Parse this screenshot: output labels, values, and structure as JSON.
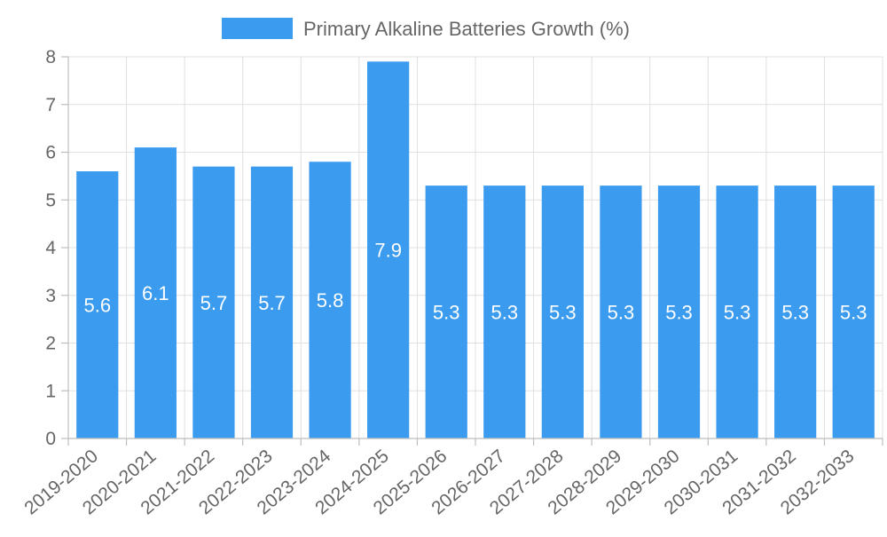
{
  "chart_data": {
    "type": "bar",
    "categories": [
      "2019-2020",
      "2020-2021",
      "2021-2022",
      "2022-2023",
      "2023-2024",
      "2024-2025",
      "2025-2026",
      "2026-2027",
      "2027-2028",
      "2028-2029",
      "2029-2030",
      "2030-2031",
      "2031-2032",
      "2032-2033"
    ],
    "series": [
      {
        "name": "Primary Alkaline Batteries Growth (%)",
        "values": [
          5.6,
          6.1,
          5.7,
          5.7,
          5.8,
          7.9,
          5.3,
          5.3,
          5.3,
          5.3,
          5.3,
          5.3,
          5.3,
          5.3
        ],
        "color": "#3a9bef"
      }
    ],
    "yticks": [
      0,
      1,
      2,
      3,
      4,
      5,
      6,
      7,
      8
    ],
    "ylim": [
      0,
      8
    ],
    "grid": true,
    "legend_position": "top-center"
  }
}
